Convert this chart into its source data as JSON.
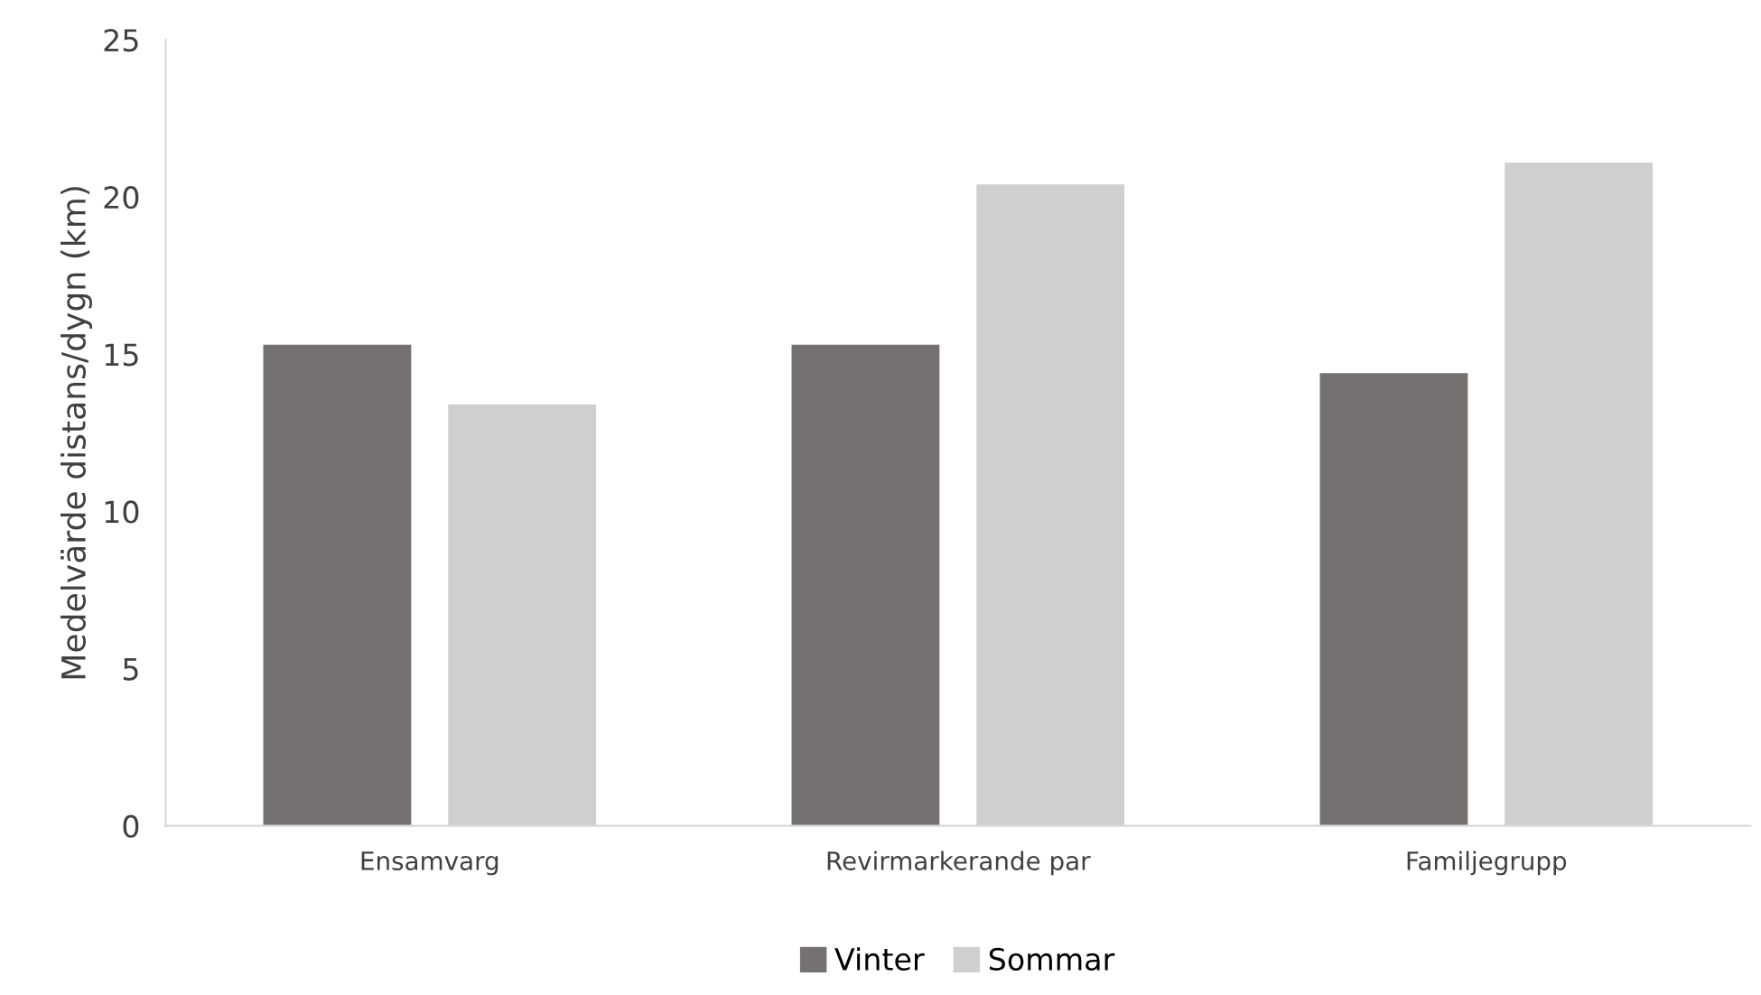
{
  "chart_data": {
    "type": "bar",
    "ylabel": "Medelvärde distans/dygn (km)",
    "categories": [
      "Ensamvarg",
      "Revirmarkerande par",
      "Familjegrupp"
    ],
    "series": [
      {
        "name": "Vinter",
        "color": "#767171",
        "values": [
          15.3,
          15.3,
          14.4
        ]
      },
      {
        "name": "Sommar",
        "color": "#d0cece",
        "values": [
          13.4,
          20.4,
          21.1
        ]
      }
    ],
    "ylim": [
      0,
      25
    ],
    "yticks": [
      0,
      5,
      10,
      15,
      20,
      25
    ],
    "grid": false,
    "legend": "bottom"
  }
}
